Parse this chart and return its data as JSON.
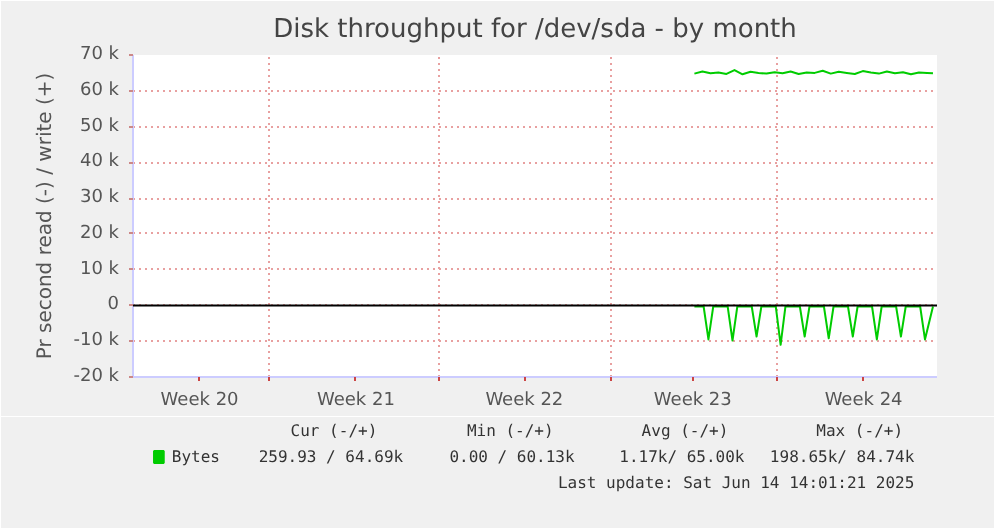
{
  "chart_data": {
    "type": "line",
    "title": "Disk throughput for /dev/sda - by month",
    "ylabel": "Pr second read (-) / write (+)",
    "xlim": [
      "2025-05-12T08:00",
      "2025-06-14T18:00"
    ],
    "ylim": [
      -20000,
      70000
    ],
    "xticks": [
      {
        "value": "2025-05-15T02:24",
        "label": "Week 20"
      },
      {
        "value": "2025-05-18T00:00",
        "label": null
      },
      {
        "value": "2025-05-21T14:24",
        "label": "Week 21"
      },
      {
        "value": "2025-05-25T02:00",
        "label": null
      },
      {
        "value": "2025-05-28T14:24",
        "label": "Week 22"
      },
      {
        "value": "2025-06-01T04:48",
        "label": null
      },
      {
        "value": "2025-06-04T14:24",
        "label": "Week 23"
      },
      {
        "value": "2025-06-08T02:24",
        "label": null
      },
      {
        "value": "2025-06-11T16:48",
        "label": "Week 24"
      }
    ],
    "yticks": [
      {
        "value": -20000,
        "label": "-20 k"
      },
      {
        "value": -10000,
        "label": "-10 k"
      },
      0,
      {
        "value": 10000,
        "label": "10 k"
      },
      {
        "value": 20000,
        "label": "20 k"
      },
      {
        "value": 30000,
        "label": "30 k"
      },
      {
        "value": 40000,
        "label": "40 k"
      },
      {
        "value": 50000,
        "label": "50 k"
      },
      {
        "value": 60000,
        "label": "60 k"
      },
      {
        "value": 70000,
        "label": "70 k"
      }
    ],
    "grid": true,
    "legend": "bottom left",
    "ref_lines": [
      {
        "axis": "y",
        "value": 0,
        "label": null,
        "color": "#000000"
      }
    ],
    "series": [
      {
        "name": "Bytes",
        "color": "#00cc00",
        "x": [
          "2025-06-04T16:00",
          "2025-06-05T00:00",
          "2025-06-05T08:00",
          "2025-06-05T16:00",
          "2025-06-06T00:00",
          "2025-06-06T08:00",
          "2025-06-06T16:00",
          "2025-06-07T00:00",
          "2025-06-07T08:00",
          "2025-06-07T16:00",
          "2025-06-08T00:00",
          "2025-06-08T08:00",
          "2025-06-08T16:00",
          "2025-06-09T00:00",
          "2025-06-09T08:00",
          "2025-06-09T16:00",
          "2025-06-10T00:00",
          "2025-06-10T08:00",
          "2025-06-10T16:00",
          "2025-06-11T00:00",
          "2025-06-11T08:00",
          "2025-06-11T16:00",
          "2025-06-12T00:00",
          "2025-06-12T08:00",
          "2025-06-12T16:00",
          "2025-06-13T00:00",
          "2025-06-13T08:00",
          "2025-06-13T16:00",
          "2025-06-14T00:00",
          "2025-06-14T08:00",
          "2025-06-14T14:00"
        ],
        "values": [
          64800,
          65400,
          64900,
          65100,
          64700,
          65800,
          64600,
          65300,
          65000,
          64800,
          65200,
          64900,
          65400,
          64700,
          65100,
          65000,
          65600,
          64800,
          65300,
          65000,
          64700,
          65500,
          65100,
          64800,
          65400,
          64900,
          65200,
          64600,
          65100,
          65000,
          64900
        ]
      },
      {
        "color": "#00cc00",
        "x": [
          "2025-06-04T16:00",
          "2025-06-05T01:12",
          "2025-06-05T06:00",
          "2025-06-05T10:48",
          "2025-06-06T01:12",
          "2025-06-06T06:00",
          "2025-06-06T10:48",
          "2025-06-07T01:12",
          "2025-06-07T06:00",
          "2025-06-07T10:48",
          "2025-06-08T01:12",
          "2025-06-08T06:00",
          "2025-06-08T10:48",
          "2025-06-09T01:12",
          "2025-06-09T06:00",
          "2025-06-09T10:48",
          "2025-06-10T01:12",
          "2025-06-10T06:00",
          "2025-06-10T10:48",
          "2025-06-11T01:12",
          "2025-06-11T06:00",
          "2025-06-11T10:48",
          "2025-06-12T01:12",
          "2025-06-12T06:00",
          "2025-06-12T10:48",
          "2025-06-13T01:12",
          "2025-06-13T06:00",
          "2025-06-13T10:48",
          "2025-06-14T01:12",
          "2025-06-14T06:00",
          "2025-06-14T14:00"
        ],
        "values": [
          -300,
          -300,
          -9500,
          -300,
          -300,
          -9800,
          -300,
          -300,
          -8700,
          -300,
          -300,
          -11000,
          -300,
          -300,
          -8700,
          -300,
          -300,
          -9200,
          -300,
          -300,
          -8700,
          -300,
          -300,
          -9500,
          -300,
          -300,
          -8700,
          -300,
          -300,
          -9500,
          -300
        ]
      }
    ],
    "annotations": [
      "Cur (-/+)",
      "Min (-/+)",
      "Avg (-/+)",
      "Max (-/+)",
      "259.93 / 64.69k",
      "0.00 / 60.13k",
      "1.17k/ 65.00k",
      "198.65k/ 84.74k",
      "Last update: Sat Jun 14 14:01:21 2025"
    ]
  }
}
